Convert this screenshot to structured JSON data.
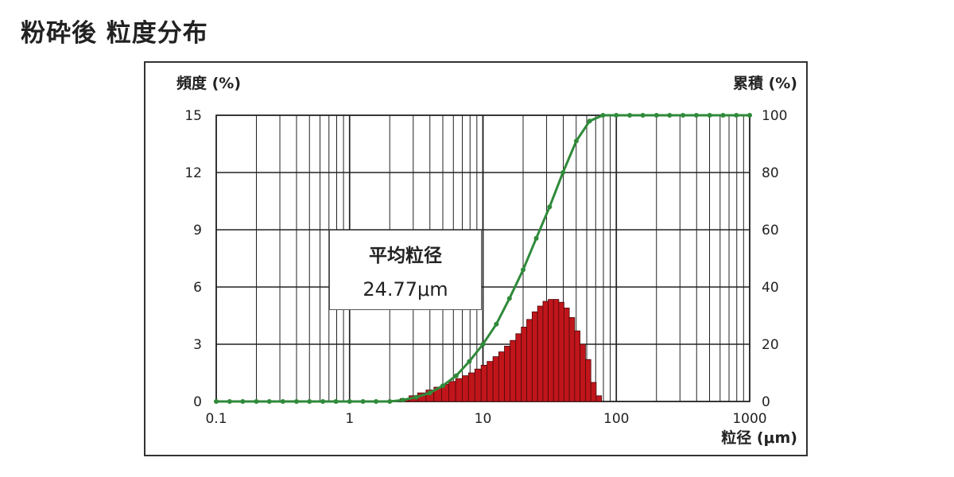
{
  "page": {
    "title": "粉砕後 粒度分布"
  },
  "chart_data": {
    "type": "bar",
    "x_scale": "log",
    "xlim": [
      0.1,
      1000
    ],
    "ylim_left": [
      0,
      15
    ],
    "ylim_right": [
      0,
      100
    ],
    "xticks": [
      0.1,
      1,
      10,
      100,
      1000
    ],
    "xtick_labels": [
      "0.1",
      "1",
      "10",
      "100",
      "1000"
    ],
    "yticks_left": [
      0,
      3,
      6,
      9,
      12,
      15
    ],
    "yticks_left_labels": [
      "0",
      "3",
      "6",
      "9",
      "12",
      "15"
    ],
    "yticks_right": [
      0,
      20,
      40,
      60,
      80,
      100
    ],
    "yticks_right_labels": [
      "0",
      "20",
      "40",
      "60",
      "80",
      "100"
    ],
    "ylabel_left": "頻度 (%)",
    "ylabel_right": "累積 (%)",
    "xlabel": "粒径 (μm)",
    "grid": true,
    "colors": {
      "bars": "#c0151b",
      "cumulative_line": "#2f8a3a",
      "grid": "#222222"
    },
    "series": [
      {
        "kind": "bar",
        "axis": "left",
        "x": [
          2.2,
          2.6,
          3.0,
          3.5,
          4.0,
          4.6,
          5.2,
          5.9,
          6.6,
          7.4,
          8.2,
          9.2,
          10.2,
          11.3,
          12.5,
          13.8,
          15.2,
          16.8,
          18.5,
          20.3,
          22.3,
          24.5,
          26.9,
          29.5,
          32.3,
          35.4,
          38.7,
          42.4,
          46.5,
          51.0,
          56.0,
          61.5,
          67.5,
          74.0
        ],
        "values": [
          0.05,
          0.15,
          0.3,
          0.45,
          0.6,
          0.75,
          0.9,
          1.05,
          1.2,
          1.35,
          1.5,
          1.7,
          1.9,
          2.1,
          2.35,
          2.6,
          2.9,
          3.2,
          3.55,
          3.9,
          4.3,
          4.7,
          5.0,
          5.25,
          5.35,
          5.35,
          5.2,
          4.9,
          4.4,
          3.7,
          3.0,
          2.2,
          1.0,
          0.3
        ]
      },
      {
        "kind": "line",
        "axis": "right",
        "x": [
          0.1,
          0.126,
          0.158,
          0.2,
          0.25,
          0.316,
          0.4,
          0.5,
          0.63,
          0.79,
          1.0,
          1.26,
          1.58,
          2.0,
          2.51,
          3.16,
          4.0,
          5.0,
          6.3,
          7.9,
          10.0,
          12.6,
          15.8,
          20.0,
          25.1,
          31.6,
          39.8,
          50.1,
          63.1,
          79.4,
          100,
          126,
          158,
          200,
          251,
          316,
          398,
          501,
          631,
          794,
          1000
        ],
        "values": [
          0,
          0,
          0,
          0,
          0,
          0,
          0,
          0,
          0,
          0,
          0,
          0,
          0,
          0,
          0.5,
          1.5,
          3.0,
          5.5,
          9,
          14,
          20,
          27,
          36,
          46,
          57,
          68,
          80,
          91,
          98,
          100,
          100,
          100,
          100,
          100,
          100,
          100,
          100,
          100,
          100,
          100,
          100
        ]
      }
    ],
    "annotation": {
      "title": "平均粒径",
      "value": "24.77μm"
    }
  }
}
